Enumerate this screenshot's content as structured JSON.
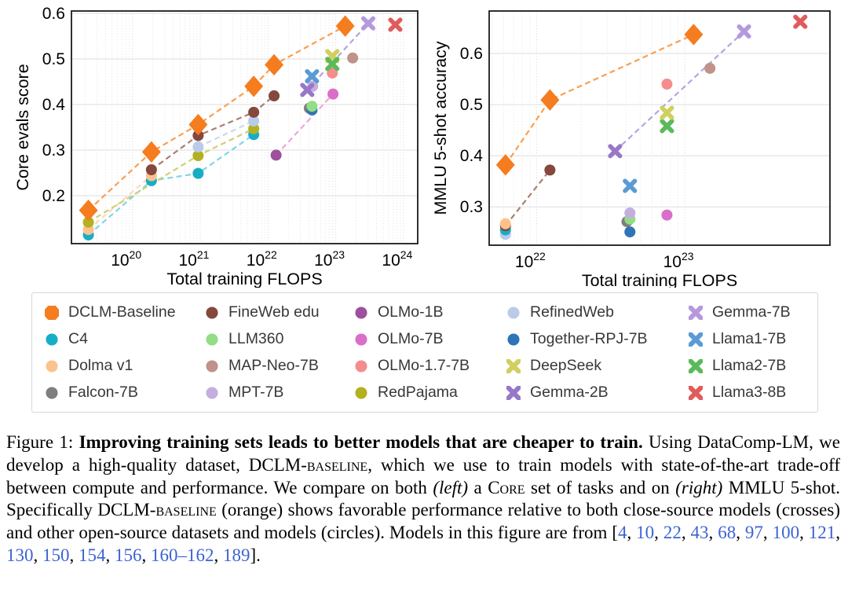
{
  "figure_caption": {
    "label": "Figure 1:",
    "label_gap": "  ",
    "title_bold": "Improving training sets leads to better models that are cheaper to train.",
    "segments": [
      {
        "t": "Using DataComp-LM, we develop a high-quality dataset, DCLM-"
      },
      {
        "t": "baseline",
        "sc": true
      },
      {
        "t": ", which we use to train models with state-of-the-art trade-off between compute and performance. We compare on both "
      },
      {
        "t": "(left)",
        "i": true
      },
      {
        "t": " a C"
      },
      {
        "t": "ore",
        "sc": true
      },
      {
        "t": " set of tasks and on "
      },
      {
        "t": "(right)",
        "i": true
      },
      {
        "t": " MMLU 5-shot.  Specifically DCLM-"
      },
      {
        "t": "baseline",
        "sc": true
      },
      {
        "t": " (orange) shows favorable performance relative to both close-source models (crosses) and other open-source datasets and models (circles). Models in this figure are from ["
      }
    ],
    "citations": [
      "4",
      "10",
      "22",
      "43",
      "68",
      "97",
      "100",
      "121",
      "130",
      "150",
      "154",
      "156",
      "160–162",
      "189"
    ],
    "citation_separator": ", ",
    "after_citations": "].",
    "citation_color": "#3c63d2"
  },
  "legend": {
    "columns": [
      [
        {
          "label": "DCLM-Baseline",
          "marker": "diamond",
          "color": "#f57c1f"
        },
        {
          "label": "C4",
          "marker": "circle",
          "color": "#15aec6"
        },
        {
          "label": "Dolma v1",
          "marker": "circle",
          "color": "#fcc28c"
        },
        {
          "label": "Falcon-7B",
          "marker": "circle",
          "color": "#7f7f7f"
        }
      ],
      [
        {
          "label": "FineWeb edu",
          "marker": "circle",
          "color": "#84483d"
        },
        {
          "label": "LLM360",
          "marker": "circle",
          "color": "#92dd85"
        },
        {
          "label": "MAP-Neo-7B",
          "marker": "circle",
          "color": "#c09289"
        },
        {
          "label": "MPT-7B",
          "marker": "circle",
          "color": "#c3aede"
        }
      ],
      [
        {
          "label": "OLMo-1B",
          "marker": "circle",
          "color": "#9e4f9e"
        },
        {
          "label": "OLMo-7B",
          "marker": "circle",
          "color": "#da6ec9"
        },
        {
          "label": "OLMo-1.7-7B",
          "marker": "circle",
          "color": "#f58d8d"
        },
        {
          "label": "RedPajama",
          "marker": "circle",
          "color": "#b3b11f"
        }
      ],
      [
        {
          "label": "RefinedWeb",
          "marker": "circle",
          "color": "#b9cbe9"
        },
        {
          "label": "Together-RPJ-7B",
          "marker": "circle",
          "color": "#2f74b5"
        },
        {
          "label": "DeepSeek",
          "marker": "cross",
          "color": "#d0cf5f"
        },
        {
          "label": "Gemma-2B",
          "marker": "cross",
          "color": "#9778c8"
        }
      ],
      [
        {
          "label": "Gemma-7B",
          "marker": "cross",
          "color": "#b599dd"
        },
        {
          "label": "Llama1-7B",
          "marker": "cross",
          "color": "#5a9bd4"
        },
        {
          "label": "Llama2-7B",
          "marker": "cross",
          "color": "#5aba5a"
        },
        {
          "label": "Llama3-8B",
          "marker": "cross",
          "color": "#e05c5c"
        }
      ]
    ]
  },
  "chart_data": [
    {
      "type": "scatter",
      "title": "",
      "xlabel": "Total training FLOPS",
      "ylabel": "Core evals score",
      "x_scale": "log10",
      "x_range_log": [
        19.1,
        24.21
      ],
      "y_range": [
        0.095,
        0.605
      ],
      "x_ticks_exp": [
        20,
        21,
        22,
        23,
        24
      ],
      "y_ticks": [
        0.2,
        0.3,
        0.4,
        0.5,
        0.6
      ],
      "grid": true,
      "series": [
        {
          "name": "Falcon-7B",
          "marker": "circle",
          "color": "#7f7f7f",
          "points": [
            [
              22.61,
              0.392
            ]
          ]
        },
        {
          "name": "Together-RPJ-7B",
          "marker": "circle",
          "color": "#2f74b5",
          "points": [
            [
              22.65,
              0.388
            ]
          ]
        },
        {
          "name": "LLM360",
          "marker": "circle",
          "color": "#92dd85",
          "points": [
            [
              22.65,
              0.396
            ]
          ]
        },
        {
          "name": "C4",
          "marker": "circle",
          "color": "#15aec6",
          "line_color": "#7ed7e2",
          "points": [
            [
              19.35,
              0.114
            ],
            [
              20.28,
              0.233
            ],
            [
              20.97,
              0.249
            ],
            [
              21.79,
              0.334
            ]
          ]
        },
        {
          "name": "Dolma v1",
          "marker": "circle",
          "color": "#fcc28c",
          "line_color": "#fdd9b4",
          "points": [
            [
              19.35,
              0.126
            ],
            [
              20.28,
              0.244
            ]
          ]
        },
        {
          "name": "RedPajama",
          "marker": "circle",
          "color": "#b3b11f",
          "line_color": "#cfcf77",
          "points": [
            [
              19.35,
              0.142
            ],
            [
              20.97,
              0.288
            ],
            [
              21.79,
              0.347
            ]
          ]
        },
        {
          "name": "RefinedWeb",
          "marker": "circle",
          "color": "#b9cbe9",
          "line_color": "#ccd9ef",
          "points": [
            [
              20.97,
              0.307
            ],
            [
              21.79,
              0.364
            ]
          ]
        },
        {
          "name": "MPT-7B",
          "marker": "circle",
          "color": "#c3aede",
          "points": [
            [
              22.66,
              0.44
            ]
          ]
        },
        {
          "name": "FineWeb edu",
          "marker": "circle",
          "color": "#84483d",
          "line_color": "#a97f72",
          "points": [
            [
              20.28,
              0.257
            ],
            [
              20.97,
              0.332
            ],
            [
              21.79,
              0.383
            ],
            [
              22.09,
              0.419
            ]
          ]
        },
        {
          "name": "OLMo-1B",
          "marker": "circle",
          "color": "#9e4f9e",
          "points": [
            [
              22.12,
              0.289
            ]
          ]
        },
        {
          "name": "OLMo-7B",
          "marker": "circle",
          "color": "#da6ec9",
          "points": [
            [
              22.96,
              0.423
            ]
          ]
        },
        {
          "name": "OLMo-1.7-7B",
          "marker": "circle",
          "color": "#f58d8d",
          "points": [
            [
              22.95,
              0.469
            ]
          ]
        },
        {
          "name": "Gemma-2B",
          "marker": "cross",
          "color": "#9778c8",
          "points": [
            [
              22.58,
              0.432
            ]
          ]
        },
        {
          "name": "Llama1-7B",
          "marker": "cross",
          "color": "#5a9bd4",
          "points": [
            [
              22.65,
              0.462
            ]
          ]
        },
        {
          "name": "DeepSeek",
          "marker": "cross",
          "color": "#d0cf5f",
          "points": [
            [
              22.95,
              0.506
            ]
          ]
        },
        {
          "name": "Llama2-7B",
          "marker": "cross",
          "color": "#5aba5a",
          "points": [
            [
              22.95,
              0.489
            ]
          ]
        },
        {
          "name": "MAP-Neo-7B",
          "marker": "circle",
          "color": "#c09289",
          "points": [
            [
              23.25,
              0.502
            ]
          ]
        },
        {
          "name": "Gemma-7B",
          "marker": "cross",
          "color": "#b599dd",
          "points": [
            [
              23.48,
              0.578
            ]
          ]
        },
        {
          "name": "Llama3-8B",
          "marker": "cross",
          "color": "#e05c5c",
          "points": [
            [
              23.88,
              0.575
            ]
          ]
        },
        {
          "name": "DCLM-Baseline",
          "marker": "diamond",
          "color": "#f57c1f",
          "line_color": "#fb9e4f",
          "points": [
            [
              19.35,
              0.168
            ],
            [
              20.28,
              0.296
            ],
            [
              20.97,
              0.356
            ],
            [
              21.79,
              0.44
            ],
            [
              22.09,
              0.487
            ],
            [
              23.14,
              0.572
            ]
          ]
        }
      ],
      "connectors": [
        {
          "from": [
            22.12,
            0.289
          ],
          "to": [
            22.96,
            0.423
          ],
          "color": "#f2a3dc"
        },
        {
          "from": [
            22.58,
            0.432
          ],
          "to": [
            23.48,
            0.578
          ],
          "color": "#b7a3e0"
        }
      ]
    },
    {
      "type": "scatter",
      "title": "",
      "xlabel": "Total training FLOPS",
      "ylabel": "MMLU 5-shot accuracy",
      "x_scale": "log10",
      "x_range_log": [
        21.68,
        23.98
      ],
      "y_range": [
        0.225,
        0.683
      ],
      "x_ticks_exp": [
        22,
        23
      ],
      "y_ticks": [
        0.3,
        0.4,
        0.5,
        0.6
      ],
      "grid": true,
      "series": [
        {
          "name": "Falcon-7B",
          "marker": "circle",
          "color": "#7f7f7f",
          "points": [
            [
              22.61,
              0.271
            ]
          ]
        },
        {
          "name": "RefinedWeb",
          "marker": "circle",
          "color": "#b9cbe9",
          "points": [
            [
              21.79,
              0.246
            ]
          ]
        },
        {
          "name": "C4",
          "marker": "circle",
          "color": "#15aec6",
          "points": [
            [
              21.79,
              0.255
            ]
          ]
        },
        {
          "name": "FineWeb edu",
          "marker": "circle",
          "color": "#84483d",
          "line_color": "#a97f72",
          "points": [
            [
              21.79,
              0.263
            ],
            [
              22.09,
              0.372
            ]
          ]
        },
        {
          "name": "Dolma v1",
          "marker": "circle",
          "color": "#fcc28c",
          "points": [
            [
              21.79,
              0.267
            ]
          ]
        },
        {
          "name": "Together-RPJ-7B",
          "marker": "circle",
          "color": "#2f74b5",
          "points": [
            [
              22.63,
              0.251
            ]
          ]
        },
        {
          "name": "LLM360",
          "marker": "circle",
          "color": "#92dd85",
          "points": [
            [
              22.63,
              0.276
            ]
          ]
        },
        {
          "name": "MPT-7B",
          "marker": "circle",
          "color": "#c3aede",
          "points": [
            [
              22.63,
              0.288
            ]
          ]
        },
        {
          "name": "OLMo-7B",
          "marker": "circle",
          "color": "#da6ec9",
          "points": [
            [
              22.88,
              0.284
            ]
          ]
        },
        {
          "name": "Llama1-7B",
          "marker": "cross",
          "color": "#5a9bd4",
          "points": [
            [
              22.63,
              0.341
            ]
          ]
        },
        {
          "name": "Gemma-2B",
          "marker": "cross",
          "color": "#9778c8",
          "points": [
            [
              22.53,
              0.409
            ]
          ]
        },
        {
          "name": "Llama2-7B",
          "marker": "cross",
          "color": "#5aba5a",
          "points": [
            [
              22.88,
              0.458
            ]
          ]
        },
        {
          "name": "DeepSeek",
          "marker": "cross",
          "color": "#d0cf5f",
          "points": [
            [
              22.88,
              0.484
            ]
          ]
        },
        {
          "name": "OLMo-1.7-7B",
          "marker": "circle",
          "color": "#f58d8d",
          "points": [
            [
              22.88,
              0.54
            ]
          ]
        },
        {
          "name": "MAP-Neo-7B",
          "marker": "circle",
          "color": "#c09289",
          "points": [
            [
              23.17,
              0.571
            ]
          ]
        },
        {
          "name": "Gemma-7B",
          "marker": "cross",
          "color": "#b599dd",
          "points": [
            [
              23.4,
              0.643
            ]
          ]
        },
        {
          "name": "Llama3-8B",
          "marker": "cross",
          "color": "#e05c5c",
          "points": [
            [
              23.78,
              0.662
            ]
          ]
        },
        {
          "name": "DCLM-Baseline",
          "marker": "diamond",
          "color": "#f57c1f",
          "line_color": "#fb9e4f",
          "points": [
            [
              21.79,
              0.382
            ],
            [
              22.09,
              0.509
            ],
            [
              23.06,
              0.637
            ]
          ]
        }
      ],
      "connectors": [
        {
          "from": [
            22.53,
            0.409
          ],
          "to": [
            23.4,
            0.643
          ],
          "color": "#b7a3e0"
        }
      ]
    }
  ]
}
